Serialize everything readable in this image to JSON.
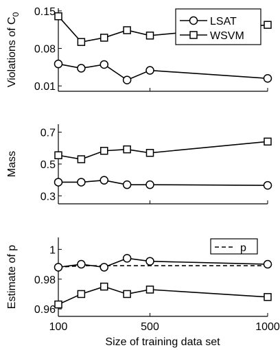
{
  "chart_data": [
    {
      "type": "line",
      "x": [
        100,
        200,
        300,
        400,
        500,
        1000
      ],
      "ylabel": "Violations of C",
      "ylabel_subscript": "0",
      "ylim": [
        0,
        0.155
      ],
      "yticks": [
        0.01,
        0.08,
        0.15
      ],
      "ytick_labels": [
        "0.01",
        "0.08",
        "0.15"
      ],
      "legend": {
        "placement": "top-right",
        "entries": [
          "LSAT",
          "WSVM"
        ]
      },
      "series": [
        {
          "name": "LSAT",
          "marker": "circle",
          "values": [
            0.051,
            0.043,
            0.05,
            0.021,
            0.039,
            0.024
          ]
        },
        {
          "name": "WSVM",
          "marker": "square",
          "values": [
            0.14,
            0.092,
            0.1,
            0.114,
            0.104,
            0.124
          ]
        }
      ]
    },
    {
      "type": "line",
      "x": [
        100,
        200,
        300,
        400,
        500,
        1000
      ],
      "ylabel": "Mass",
      "ylim": [
        0.25,
        0.75
      ],
      "yticks": [
        0.3,
        0.5,
        0.7
      ],
      "ytick_labels": [
        "0.3",
        "0.5",
        "0.7"
      ],
      "series": [
        {
          "name": "LSAT",
          "marker": "circle",
          "values": [
            0.386,
            0.386,
            0.398,
            0.37,
            0.37,
            0.366
          ]
        },
        {
          "name": "WSVM",
          "marker": "square",
          "values": [
            0.555,
            0.53,
            0.583,
            0.592,
            0.57,
            0.641
          ]
        }
      ]
    },
    {
      "type": "line",
      "x": [
        100,
        200,
        300,
        400,
        500,
        1000
      ],
      "xlabel": "Size of training data set",
      "xtick_values": [
        100,
        500,
        1000
      ],
      "xtick_labels": [
        "100",
        "500",
        "1000"
      ],
      "ylabel": "Estimate of p",
      "ylim": [
        0.955,
        1.008
      ],
      "yticks": [
        0.96,
        0.98,
        1.0
      ],
      "ytick_labels": [
        "0.96",
        "0.98",
        "1"
      ],
      "legend": {
        "placement": "top-right",
        "entries": [
          "p"
        ]
      },
      "series": [
        {
          "name": "p",
          "style": "dashed",
          "values": [
            0.988,
            0.989,
            0.989,
            0.989,
            0.989,
            0.989
          ]
        },
        {
          "marker": "circle",
          "values": [
            0.988,
            0.99,
            0.988,
            0.994,
            0.992,
            0.99
          ]
        },
        {
          "marker": "square",
          "values": [
            0.963,
            0.97,
            0.975,
            0.97,
            0.973,
            0.968
          ]
        }
      ]
    }
  ]
}
